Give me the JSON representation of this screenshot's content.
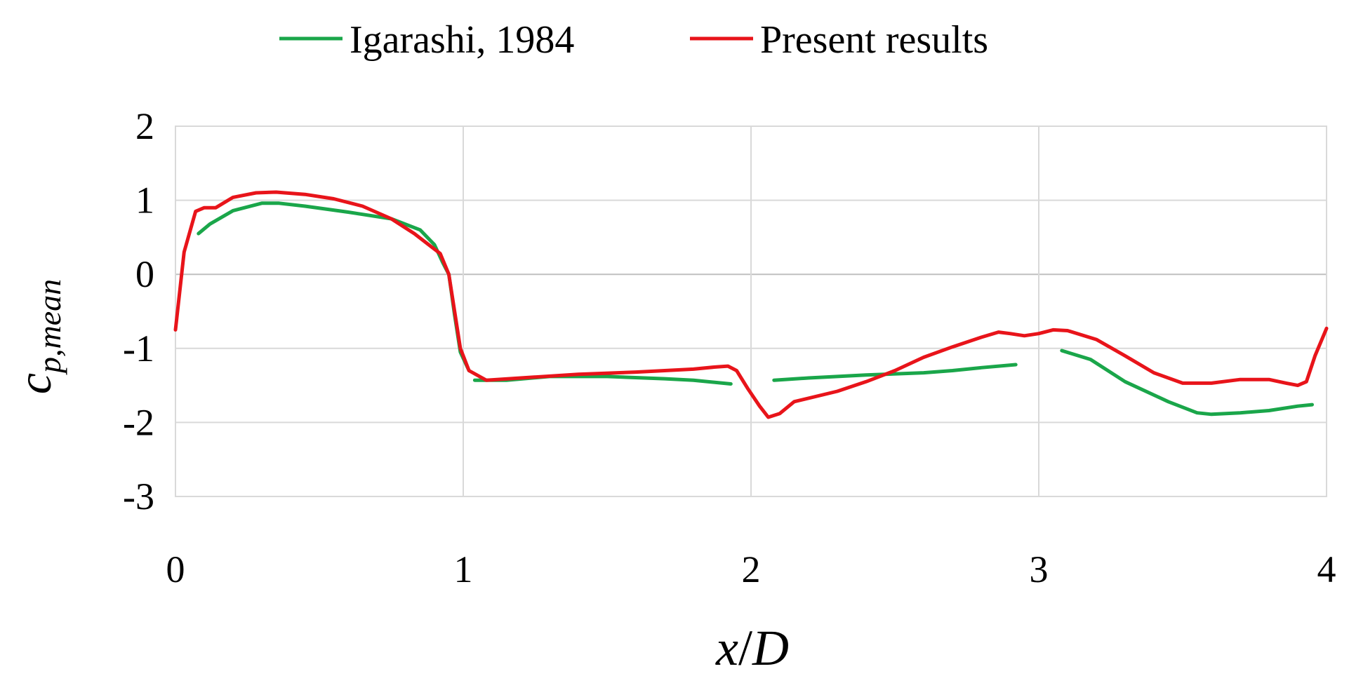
{
  "chart_data": {
    "type": "line",
    "xlabel_main": "x",
    "xlabel_sep": "/",
    "xlabel_sub": "D",
    "ylabel_main": "c",
    "ylabel_sub": "p,mean",
    "xlim": [
      0,
      4
    ],
    "ylim": [
      -3,
      2
    ],
    "xticks": [
      "0",
      "1",
      "2",
      "3",
      "4"
    ],
    "yticks": [
      "2",
      "1",
      "0",
      "-1",
      "-2",
      "-3"
    ],
    "grid": true,
    "legend_position": "top",
    "series": [
      {
        "name": "Igarashi, 1984",
        "color": "#1aa64a",
        "segments": [
          [
            [
              0.08,
              0.55
            ],
            [
              0.12,
              0.68
            ],
            [
              0.2,
              0.86
            ],
            [
              0.3,
              0.96
            ],
            [
              0.36,
              0.96
            ],
            [
              0.45,
              0.92
            ],
            [
              0.6,
              0.84
            ],
            [
              0.75,
              0.75
            ],
            [
              0.85,
              0.6
            ],
            [
              0.9,
              0.4
            ],
            [
              0.93,
              0.15
            ],
            [
              0.95,
              0.0
            ],
            [
              0.97,
              -0.55
            ],
            [
              0.99,
              -1.05
            ],
            [
              1.02,
              -1.3
            ]
          ],
          [
            [
              1.04,
              -1.43
            ],
            [
              1.15,
              -1.43
            ],
            [
              1.3,
              -1.38
            ],
            [
              1.5,
              -1.38
            ],
            [
              1.7,
              -1.41
            ],
            [
              1.8,
              -1.43
            ],
            [
              1.93,
              -1.48
            ]
          ],
          [
            [
              2.08,
              -1.43
            ],
            [
              2.2,
              -1.4
            ],
            [
              2.4,
              -1.36
            ],
            [
              2.6,
              -1.33
            ],
            [
              2.7,
              -1.3
            ],
            [
              2.8,
              -1.26
            ],
            [
              2.92,
              -1.22
            ]
          ],
          [
            [
              3.08,
              -1.03
            ],
            [
              3.18,
              -1.15
            ],
            [
              3.3,
              -1.45
            ],
            [
              3.45,
              -1.72
            ],
            [
              3.55,
              -1.87
            ],
            [
              3.6,
              -1.89
            ],
            [
              3.7,
              -1.87
            ],
            [
              3.8,
              -1.84
            ],
            [
              3.9,
              -1.78
            ],
            [
              3.95,
              -1.76
            ]
          ]
        ]
      },
      {
        "name": "Present results",
        "color": "#e8141a",
        "segments": [
          [
            [
              0.0,
              -0.75
            ],
            [
              0.03,
              0.3
            ],
            [
              0.07,
              0.85
            ],
            [
              0.1,
              0.9
            ],
            [
              0.14,
              0.9
            ],
            [
              0.2,
              1.04
            ],
            [
              0.28,
              1.1
            ],
            [
              0.35,
              1.11
            ],
            [
              0.45,
              1.08
            ],
            [
              0.55,
              1.02
            ],
            [
              0.65,
              0.92
            ],
            [
              0.75,
              0.75
            ],
            [
              0.83,
              0.55
            ],
            [
              0.88,
              0.4
            ],
            [
              0.92,
              0.28
            ],
            [
              0.95,
              0.0
            ],
            [
              0.97,
              -0.5
            ],
            [
              0.99,
              -1.0
            ],
            [
              1.02,
              -1.3
            ],
            [
              1.08,
              -1.43
            ],
            [
              1.2,
              -1.4
            ],
            [
              1.4,
              -1.35
            ],
            [
              1.6,
              -1.32
            ],
            [
              1.8,
              -1.28
            ],
            [
              1.88,
              -1.25
            ],
            [
              1.92,
              -1.24
            ],
            [
              1.95,
              -1.3
            ],
            [
              1.99,
              -1.55
            ],
            [
              2.03,
              -1.78
            ],
            [
              2.06,
              -1.93
            ],
            [
              2.1,
              -1.88
            ],
            [
              2.15,
              -1.72
            ],
            [
              2.3,
              -1.58
            ],
            [
              2.4,
              -1.45
            ],
            [
              2.5,
              -1.3
            ],
            [
              2.6,
              -1.12
            ],
            [
              2.7,
              -0.98
            ],
            [
              2.8,
              -0.85
            ],
            [
              2.86,
              -0.78
            ],
            [
              2.9,
              -0.8
            ],
            [
              2.95,
              -0.83
            ],
            [
              3.0,
              -0.8
            ],
            [
              3.05,
              -0.75
            ],
            [
              3.1,
              -0.76
            ],
            [
              3.2,
              -0.88
            ],
            [
              3.3,
              -1.1
            ],
            [
              3.4,
              -1.33
            ],
            [
              3.5,
              -1.47
            ],
            [
              3.6,
              -1.47
            ],
            [
              3.7,
              -1.42
            ],
            [
              3.8,
              -1.42
            ],
            [
              3.86,
              -1.47
            ],
            [
              3.9,
              -1.5
            ],
            [
              3.93,
              -1.45
            ],
            [
              3.96,
              -1.1
            ],
            [
              4.0,
              -0.73
            ]
          ]
        ]
      }
    ]
  }
}
